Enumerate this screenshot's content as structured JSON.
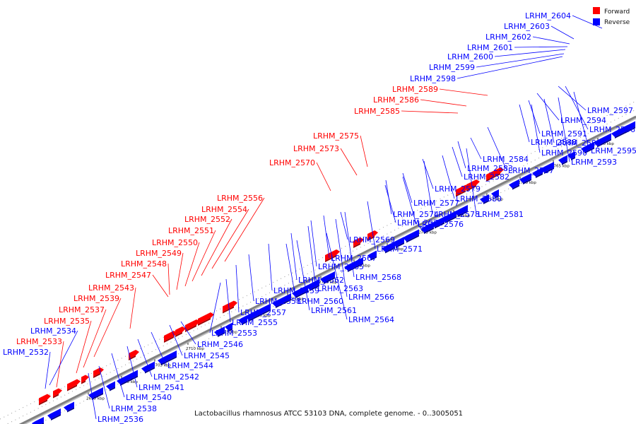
{
  "title": "Lactobacillus rhamnosus ATCC 53103 DNA, complete genome. - 0..3005051",
  "legend": [
    {
      "label": "Forward",
      "color": "#ff0000"
    },
    {
      "label": "Reverse",
      "color": "#0000ff"
    }
  ],
  "colors": {
    "forward": "#ff0000",
    "reverse": "#0000ff",
    "backbone": "#808080"
  },
  "ticks": [
    "2695 kbp",
    "2700 kbp",
    "2705 kbp",
    "2710 kbp",
    "2715 kbp",
    "2720 kbp",
    "2725 kbp",
    "2730 kbp",
    "2735 kbp",
    "2740 kbp",
    "2745 kbp",
    "2750 kbp",
    "2755 kbp",
    "2760 kbp",
    "2765 kbp",
    "2770 kbp"
  ],
  "forward_labels": [
    "LRHM_2589",
    "LRHM_2586",
    "LRHM_2585",
    "LRHM_2575",
    "LRHM_2573",
    "LRHM_2570",
    "LRHM_2556",
    "LRHM_2554",
    "LRHM_2552",
    "LRHM_2551",
    "LRHM_2550",
    "LRHM_2549",
    "LRHM_2548",
    "LRHM_2547",
    "LRHM_2543",
    "LRHM_2539",
    "LRHM_2537",
    "LRHM_2535",
    "LRHM_2533"
  ],
  "reverse_left_labels": [
    "LRHM_2604",
    "LRHM_2603",
    "LRHM_2602",
    "LRHM_2601",
    "LRHM_2600",
    "LRHM_2599",
    "LRHM_2598",
    "LRHM_2534",
    "LRHM_2532"
  ],
  "reverse_right_labels": [
    "LRHM_2597",
    "LRHM_2594",
    "LRHM_2596",
    "LRHM_2591",
    "LRHM_2588",
    "LRHM_2592",
    "LRHM_2590",
    "LRHM_2595",
    "LRHM_2593",
    "LRHM_2584",
    "LRHM_2583",
    "LRHM_2587",
    "LRHM_2582",
    "LRHM_2579",
    "LRHM_2580",
    "LRHM_2577",
    "LRHM_2574",
    "LRHM_2578",
    "LRHM_2581",
    "LRHM_2572",
    "LRHM_2576",
    "LRHM_2569",
    "LRHM_2571",
    "LRHM_2567",
    "LRHM_2565",
    "LRHM_2568",
    "LRHM_2562",
    "LRHM_2563",
    "LRHM_2559",
    "LRHM_2566",
    "LRHM_2558",
    "LRHM_2560",
    "LRHM_2557",
    "LRHM_2561",
    "LRHM_2555",
    "LRHM_2564",
    "LRHM_2553",
    "LRHM_2546",
    "LRHM_2545",
    "LRHM_2544",
    "LRHM_2542",
    "LRHM_2541",
    "LRHM_2540",
    "LRHM_2538",
    "LRHM_2536"
  ]
}
